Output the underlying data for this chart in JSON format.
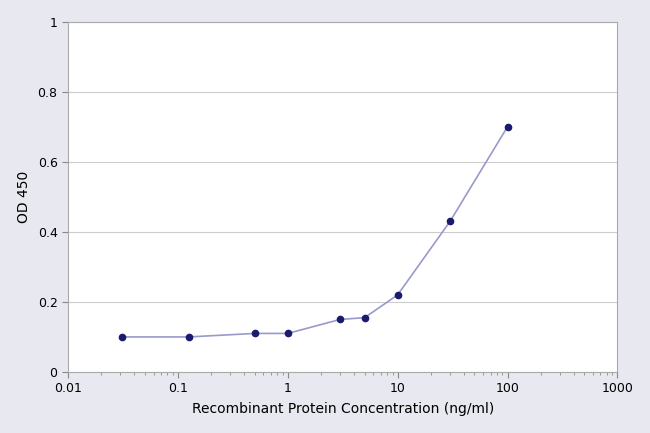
{
  "x": [
    0.031,
    0.125,
    0.5,
    1.0,
    3.0,
    5.0,
    10.0,
    30.0,
    100.0
  ],
  "y": [
    0.1,
    0.1,
    0.11,
    0.11,
    0.15,
    0.155,
    0.22,
    0.43,
    0.7
  ],
  "line_color": "#9999cc",
  "marker_color": "#1a1a6e",
  "marker_size": 4.5,
  "linewidth": 1.2,
  "xlabel": "Recombinant Protein Concentration (ng/ml)",
  "ylabel": "OD 450",
  "xlim": [
    0.01,
    1000
  ],
  "ylim": [
    0,
    1.0
  ],
  "yticks": [
    0,
    0.2,
    0.4,
    0.6,
    0.8,
    1
  ],
  "ytick_labels": [
    "0",
    "0.2",
    "0.4",
    "0.6",
    "0.8",
    "1"
  ],
  "background_color": "#ffffff",
  "plot_bg_color": "#ffffff",
  "grid_color": "#cccccc",
  "xlabel_fontsize": 10,
  "ylabel_fontsize": 10,
  "tick_fontsize": 9,
  "outer_bg": "#e8e8f0"
}
